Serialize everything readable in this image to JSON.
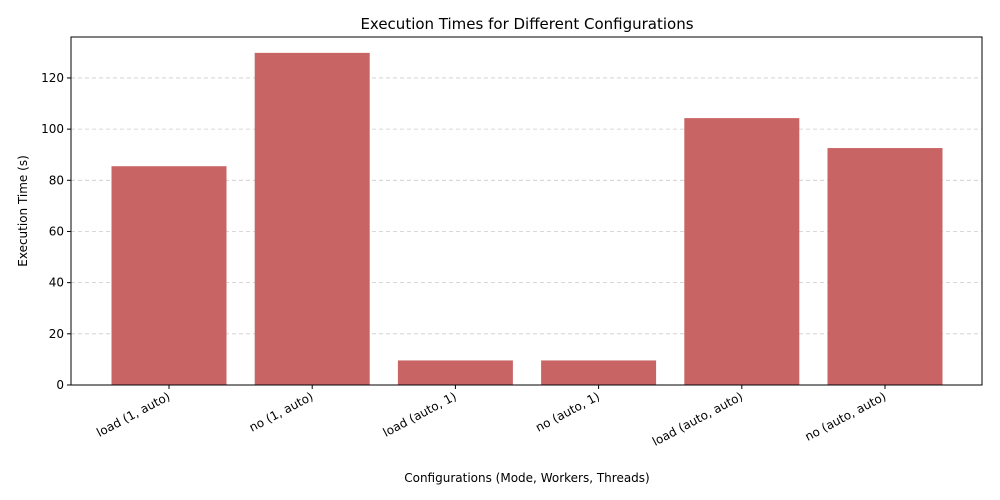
{
  "chart_data": {
    "type": "bar",
    "title": "Execution Times for Different Configurations",
    "xlabel": "Configurations (Mode, Workers, Threads)",
    "ylabel": "Execution Time (s)",
    "categories": [
      "load (1, auto)",
      "no (1, auto)",
      "load (auto, 1)",
      "no (auto, 1)",
      "load (auto, auto)",
      "no (auto, auto)"
    ],
    "values": [
      85.5,
      129.8,
      9.6,
      9.6,
      104.3,
      92.6
    ],
    "ylim": [
      0,
      136
    ],
    "yticks": [
      0,
      20,
      40,
      60,
      80,
      100,
      120
    ],
    "grid": "y-dashed",
    "bar_color": "#c86464"
  }
}
